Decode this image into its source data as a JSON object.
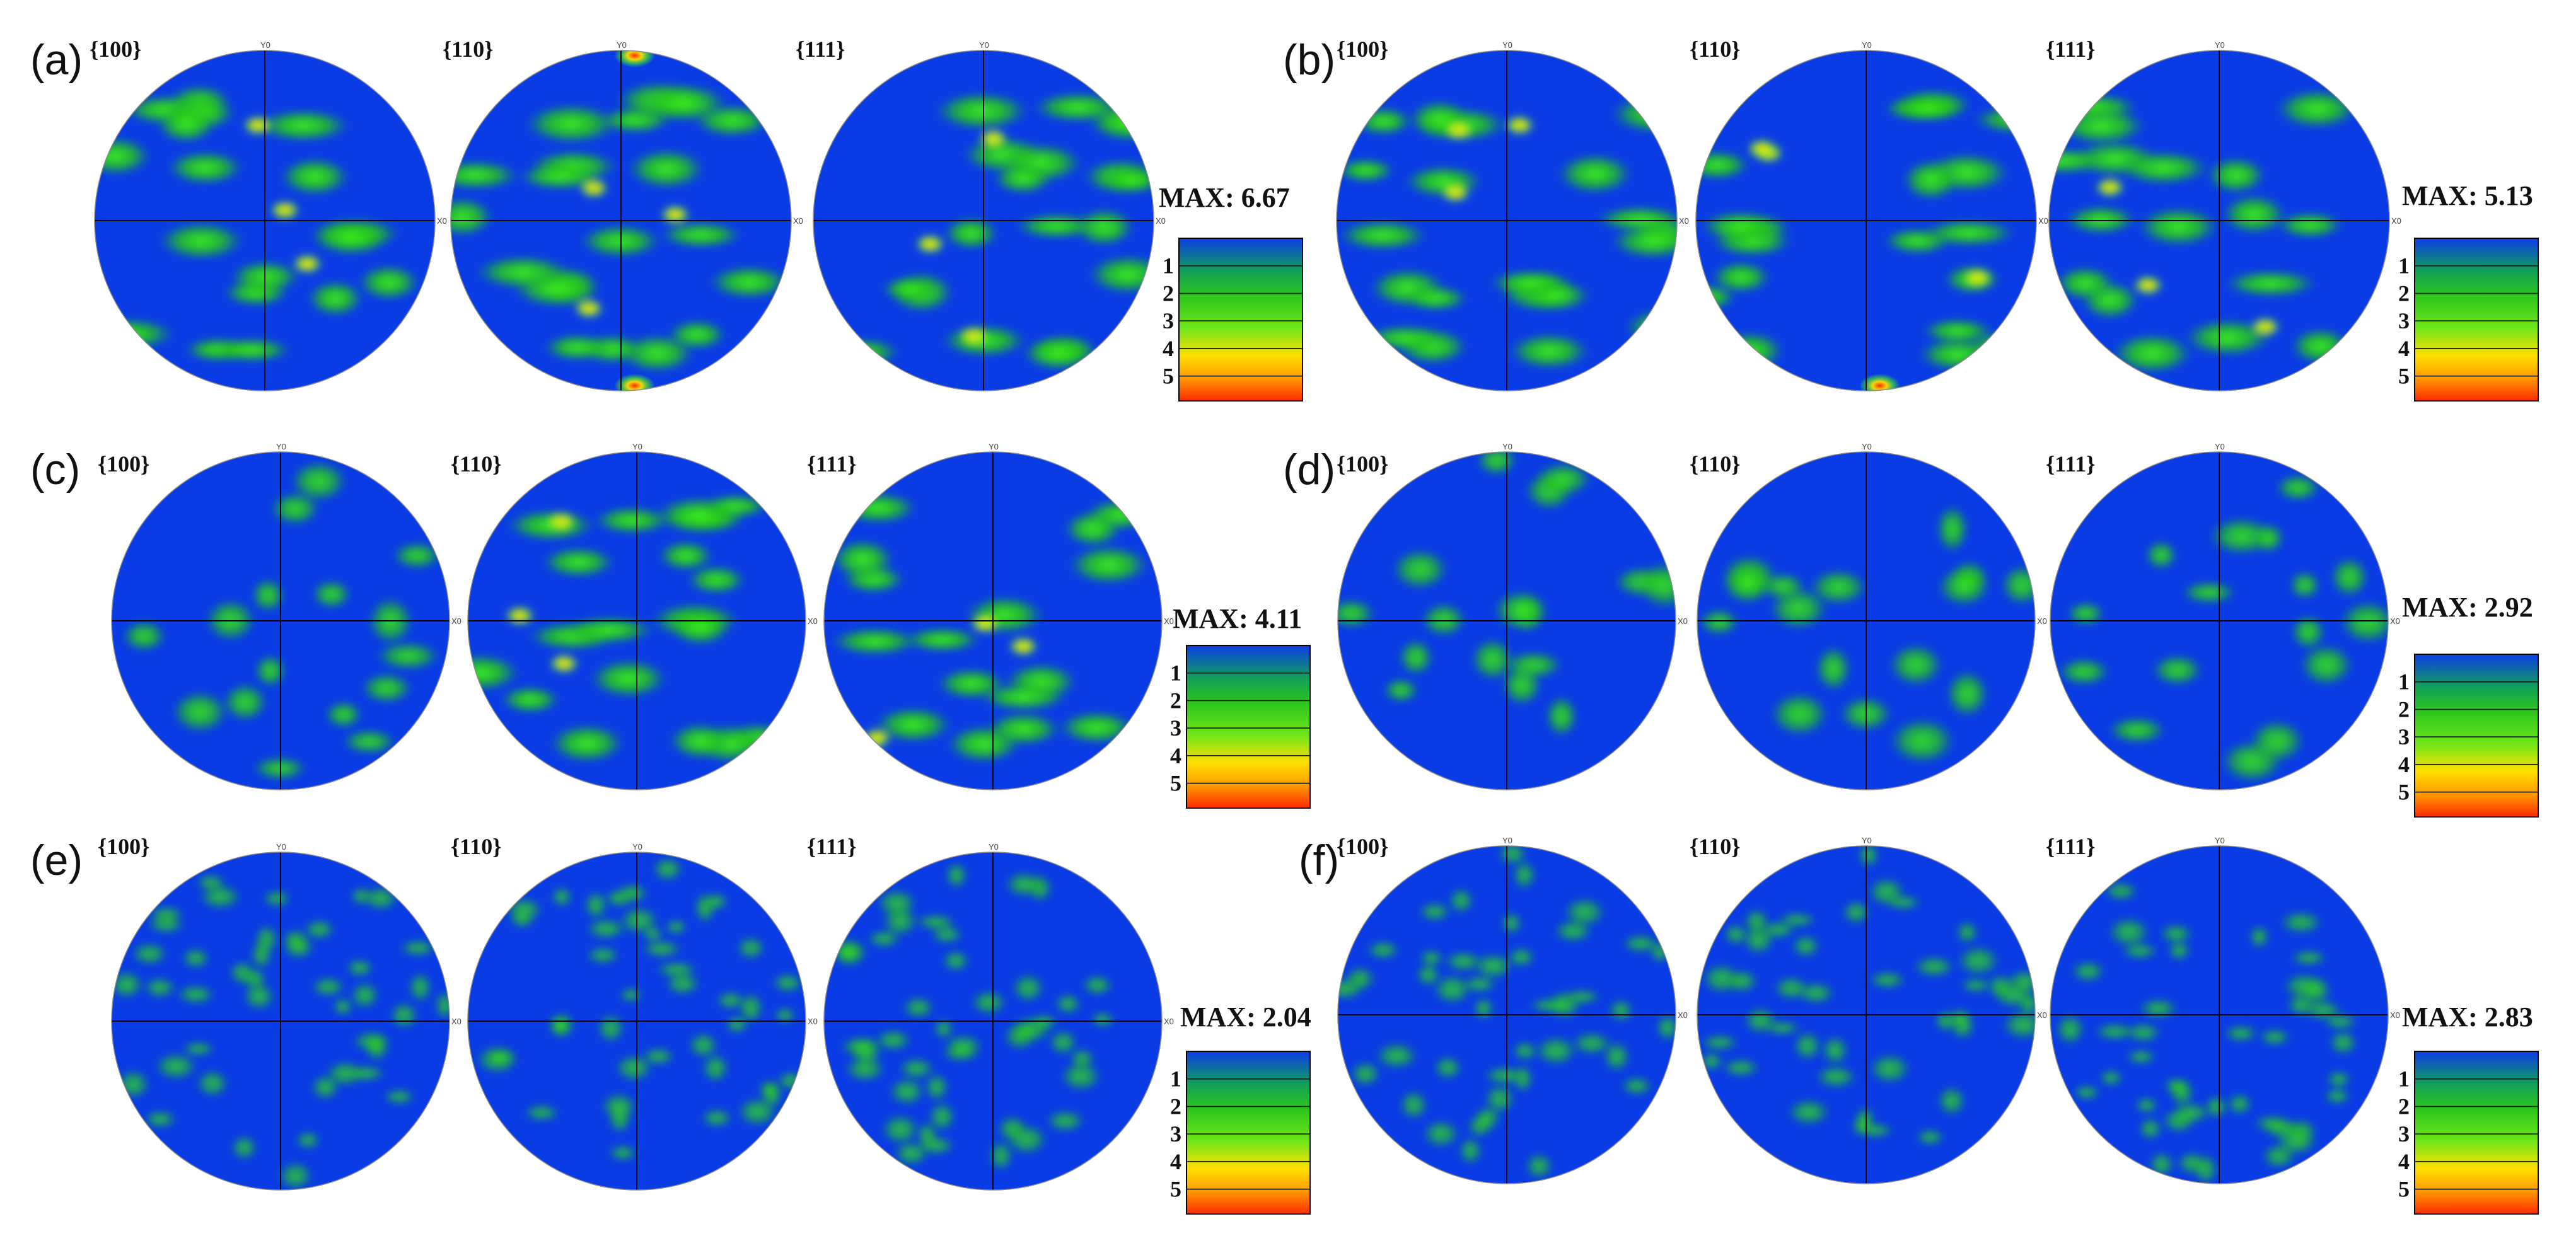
{
  "panels": [
    {
      "label": "(a)",
      "planes": [
        "{100}",
        "{110}",
        "{111}"
      ],
      "max_label": "MAX: 6.67",
      "max_value": 6.67
    },
    {
      "label": "(b)",
      "planes": [
        "{100}",
        "{110}",
        "{111}"
      ],
      "max_label": "MAX: 5.13",
      "max_value": 5.13
    },
    {
      "label": "(c)",
      "planes": [
        "{100}",
        "{110}",
        "{111}"
      ],
      "max_label": "MAX: 4.11",
      "max_value": 4.11
    },
    {
      "label": "(d)",
      "planes": [
        "{100}",
        "{110}",
        "{111}"
      ],
      "max_label": "MAX: 2.92",
      "max_value": 2.92
    },
    {
      "label": "(e)",
      "planes": [
        "{100}",
        "{110}",
        "{111}"
      ],
      "max_label": "MAX: 2.04",
      "max_value": 2.04
    },
    {
      "label": "(f)",
      "planes": [
        "{100}",
        "{110}",
        "{111}"
      ],
      "max_label": "MAX: 2.83",
      "max_value": 2.83
    }
  ],
  "axis_labels": {
    "top": "Y0",
    "right": "X0"
  },
  "scale_ticks": [
    "1",
    "2",
    "3",
    "4",
    "5"
  ],
  "colors": {
    "low": "#0a3ce6",
    "mid": "#2bc41c",
    "bright": "#3df01a",
    "high": "#ffe000",
    "peak": "#ff2a00",
    "line": "#000000"
  }
}
